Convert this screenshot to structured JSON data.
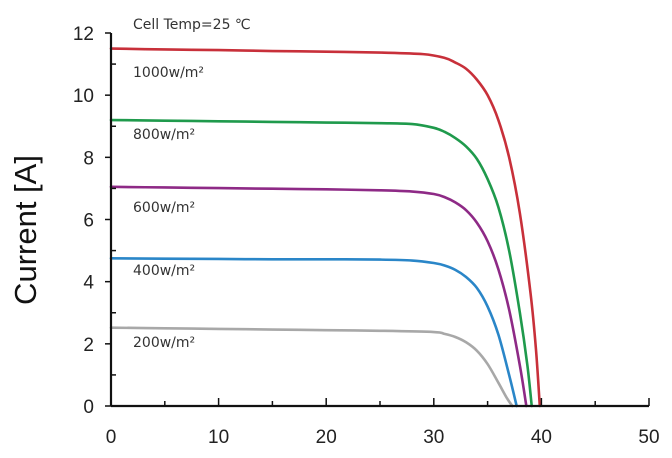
{
  "chart_data": {
    "type": "line",
    "title": "",
    "xlabel": "",
    "ylabel": "Current [A]",
    "xlim": [
      0,
      50
    ],
    "ylim": [
      0,
      12
    ],
    "xticks": [
      "0",
      "10",
      "20",
      "30",
      "40",
      "50"
    ],
    "yticks": [
      "0",
      "2",
      "4",
      "6",
      "8",
      "10",
      "12"
    ],
    "grid": false,
    "legend": "none",
    "annotations": {
      "condition": "Cell Temp=25 ℃"
    },
    "series": [
      {
        "label": "1000w/m²",
        "color": "#c8303a",
        "x": [
          0,
          5,
          10,
          15,
          20,
          25,
          29,
          31,
          32,
          33,
          34,
          35,
          36,
          37,
          38,
          39,
          39.5,
          39.85
        ],
        "y": [
          11.5,
          11.47,
          11.45,
          11.42,
          11.4,
          11.37,
          11.32,
          11.2,
          11.05,
          10.85,
          10.5,
          10.0,
          9.2,
          8.0,
          6.2,
          3.6,
          1.8,
          0
        ]
      },
      {
        "label": "800w/m²",
        "color": "#1f9a4c",
        "x": [
          0,
          5,
          10,
          15,
          20,
          25,
          28,
          30,
          31,
          32,
          33,
          34,
          35,
          36,
          37,
          38,
          38.7,
          39.1
        ],
        "y": [
          9.2,
          9.18,
          9.16,
          9.14,
          9.12,
          9.1,
          9.07,
          8.95,
          8.82,
          8.62,
          8.35,
          7.95,
          7.3,
          6.4,
          5.0,
          3.0,
          1.3,
          0
        ]
      },
      {
        "label": "600w/m²",
        "color": "#8e2a86",
        "x": [
          0,
          5,
          10,
          15,
          20,
          25,
          28,
          30,
          31,
          32,
          33,
          34,
          35,
          36,
          37,
          38,
          38.6
        ],
        "y": [
          7.05,
          7.03,
          7.01,
          6.99,
          6.97,
          6.94,
          6.9,
          6.82,
          6.72,
          6.55,
          6.3,
          5.9,
          5.3,
          4.4,
          3.1,
          1.3,
          0
        ]
      },
      {
        "label": "400w/m²",
        "color": "#2a86c8",
        "x": [
          0,
          5,
          10,
          15,
          20,
          25,
          28,
          30,
          31,
          32,
          33,
          34,
          35,
          36,
          37,
          37.7
        ],
        "y": [
          4.75,
          4.74,
          4.73,
          4.72,
          4.72,
          4.71,
          4.68,
          4.6,
          4.52,
          4.38,
          4.15,
          3.8,
          3.2,
          2.3,
          1.0,
          0
        ]
      },
      {
        "label": "200w/m²",
        "color": "#a8a8a8",
        "x": [
          0,
          5,
          10,
          15,
          20,
          25,
          30,
          31,
          32,
          33,
          34,
          35,
          36,
          36.8,
          37.3
        ],
        "y": [
          2.52,
          2.5,
          2.48,
          2.46,
          2.44,
          2.42,
          2.38,
          2.32,
          2.22,
          2.05,
          1.78,
          1.35,
          0.75,
          0.25,
          0
        ]
      }
    ]
  }
}
